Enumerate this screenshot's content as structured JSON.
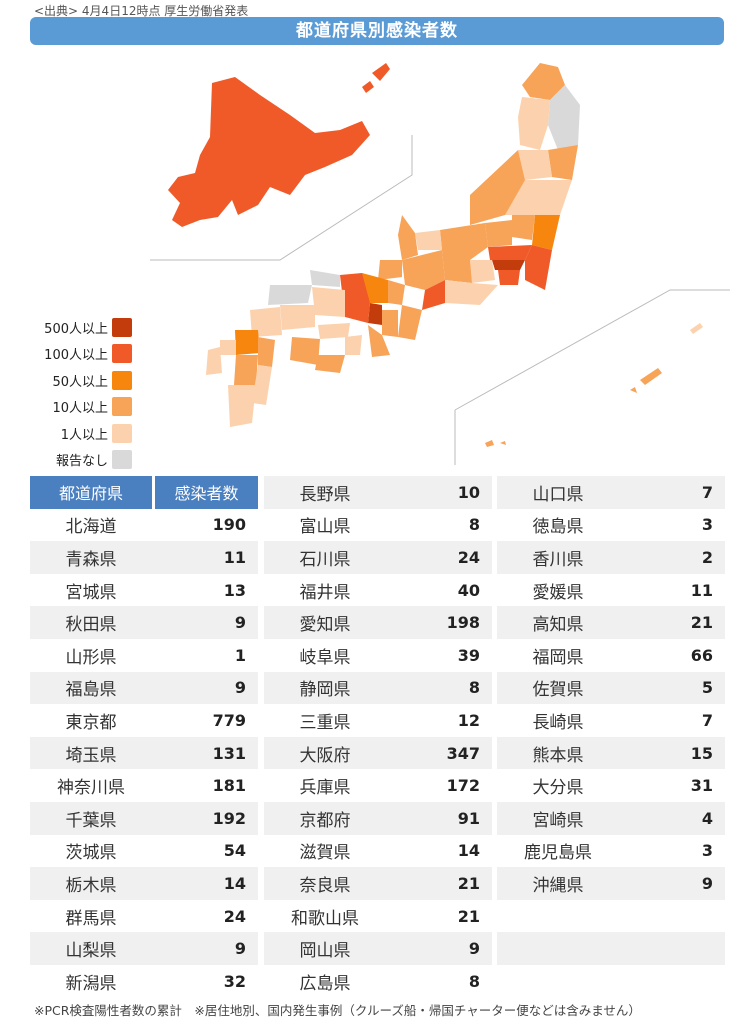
{
  "source_line": "<出典> 4月4日12時点 厚生労働省発表",
  "title": "都道府県別感染者数",
  "legend": [
    {
      "label": "500人以上",
      "color": "#c33c0c"
    },
    {
      "label": "100人以上",
      "color": "#f05a28"
    },
    {
      "label": "50人以上",
      "color": "#f7860f"
    },
    {
      "label": "10人以上",
      "color": "#f7a358"
    },
    {
      "label": "1人以上",
      "color": "#fbd2ad"
    },
    {
      "label": "報告なし",
      "color": "#d9d9d9"
    }
  ],
  "table_header": {
    "prefecture": "都道府県",
    "cases": "感染者数"
  },
  "chart_data": {
    "type": "table",
    "columns": [
      "都道府県",
      "感染者数"
    ],
    "rows": [
      [
        "北海道",
        "190"
      ],
      [
        "青森県",
        "11"
      ],
      [
        "宮城県",
        "13"
      ],
      [
        "秋田県",
        "9"
      ],
      [
        "山形県",
        "1"
      ],
      [
        "福島県",
        "9"
      ],
      [
        "東京都",
        "779"
      ],
      [
        "埼玉県",
        "131"
      ],
      [
        "神奈川県",
        "181"
      ],
      [
        "千葉県",
        "192"
      ],
      [
        "茨城県",
        "54"
      ],
      [
        "栃木県",
        "14"
      ],
      [
        "群馬県",
        "24"
      ],
      [
        "山梨県",
        "9"
      ],
      [
        "新潟県",
        "32"
      ],
      [
        "長野県",
        "10"
      ],
      [
        "富山県",
        "8"
      ],
      [
        "石川県",
        "24"
      ],
      [
        "福井県",
        "40"
      ],
      [
        "愛知県",
        "198"
      ],
      [
        "岐阜県",
        "39"
      ],
      [
        "静岡県",
        "8"
      ],
      [
        "三重県",
        "12"
      ],
      [
        "大阪府",
        "347"
      ],
      [
        "兵庫県",
        "172"
      ],
      [
        "京都府",
        "91"
      ],
      [
        "滋賀県",
        "14"
      ],
      [
        "奈良県",
        "21"
      ],
      [
        "和歌山県",
        "21"
      ],
      [
        "岡山県",
        "9"
      ],
      [
        "広島県",
        "8"
      ],
      [
        "山口県",
        "7"
      ],
      [
        "徳島県",
        "3"
      ],
      [
        "香川県",
        "2"
      ],
      [
        "愛媛県",
        "11"
      ],
      [
        "高知県",
        "21"
      ],
      [
        "福岡県",
        "66"
      ],
      [
        "佐賀県",
        "5"
      ],
      [
        "長崎県",
        "7"
      ],
      [
        "熊本県",
        "15"
      ],
      [
        "大分県",
        "31"
      ],
      [
        "宮崎県",
        "4"
      ],
      [
        "鹿児島県",
        "3"
      ],
      [
        "沖縄県",
        "9"
      ]
    ]
  },
  "footnote": "※PCR検査陽性者数の累計　※居住地別、国内発生事例（クルーズ船・帰国チャーター便などは含みません）"
}
